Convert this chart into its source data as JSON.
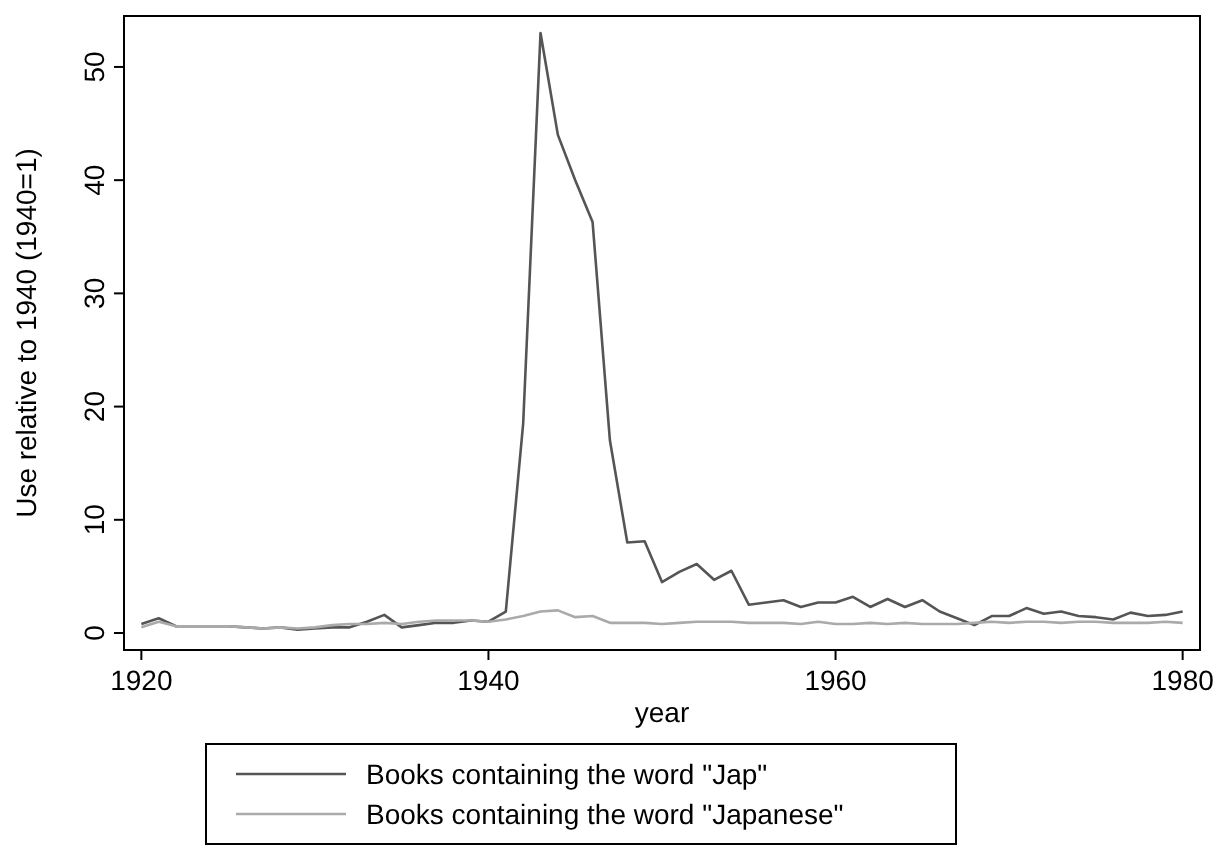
{
  "chart_data": {
    "type": "line",
    "xlabel": "year",
    "ylabel": "Use relative to 1940 (1940=1)",
    "x": [
      1920,
      1921,
      1922,
      1923,
      1924,
      1925,
      1926,
      1927,
      1928,
      1929,
      1930,
      1931,
      1932,
      1933,
      1934,
      1935,
      1936,
      1937,
      1938,
      1939,
      1940,
      1941,
      1942,
      1943,
      1944,
      1945,
      1946,
      1947,
      1948,
      1949,
      1950,
      1951,
      1952,
      1953,
      1954,
      1955,
      1956,
      1957,
      1958,
      1959,
      1960,
      1961,
      1962,
      1963,
      1964,
      1965,
      1966,
      1967,
      1968,
      1969,
      1970,
      1971,
      1972,
      1973,
      1974,
      1975,
      1976,
      1977,
      1978,
      1979,
      1980
    ],
    "series": [
      {
        "name": "Books containing the word \"Jap\"",
        "color": "#555555",
        "values": [
          0.8,
          1.3,
          0.6,
          0.6,
          0.6,
          0.6,
          0.5,
          0.4,
          0.5,
          0.3,
          0.4,
          0.5,
          0.5,
          1.0,
          1.6,
          0.5,
          0.7,
          0.9,
          0.9,
          1.1,
          1.0,
          1.9,
          18.5,
          53,
          44,
          40,
          36.3,
          17,
          8,
          8.1,
          4.5,
          5.4,
          6.1,
          4.7,
          5.5,
          2.5,
          2.7,
          2.9,
          2.3,
          2.7,
          2.7,
          3.2,
          2.3,
          3.0,
          2.3,
          2.9,
          1.9,
          1.3,
          0.7,
          1.5,
          1.5,
          2.2,
          1.7,
          1.9,
          1.5,
          1.4,
          1.2,
          1.8,
          1.5,
          1.6,
          1.9
        ]
      },
      {
        "name": "Books containing the word \"Japanese\"",
        "color": "#aaaaaa",
        "values": [
          0.5,
          1.0,
          0.6,
          0.6,
          0.6,
          0.6,
          0.5,
          0.4,
          0.5,
          0.4,
          0.5,
          0.7,
          0.8,
          0.8,
          0.9,
          0.8,
          1.0,
          1.1,
          1.1,
          1.1,
          1.0,
          1.2,
          1.5,
          1.9,
          2.0,
          1.4,
          1.5,
          0.9,
          0.9,
          0.9,
          0.8,
          0.9,
          1.0,
          1.0,
          1.0,
          0.9,
          0.9,
          0.9,
          0.8,
          1.0,
          0.8,
          0.8,
          0.9,
          0.8,
          0.9,
          0.8,
          0.8,
          0.8,
          0.9,
          1.0,
          0.9,
          1.0,
          1.0,
          0.9,
          1.0,
          1.0,
          0.9,
          0.9,
          0.9,
          1.0,
          0.9
        ]
      }
    ],
    "xlim": [
      1919,
      1981
    ],
    "xticks": [
      1920,
      1940,
      1960,
      1980
    ],
    "ylim": [
      -1.5,
      54.5
    ],
    "yticks": [
      0,
      10,
      20,
      30,
      40,
      50
    ],
    "grid": false,
    "legend": "bottom",
    "marker": "none",
    "line_style": "solid"
  }
}
